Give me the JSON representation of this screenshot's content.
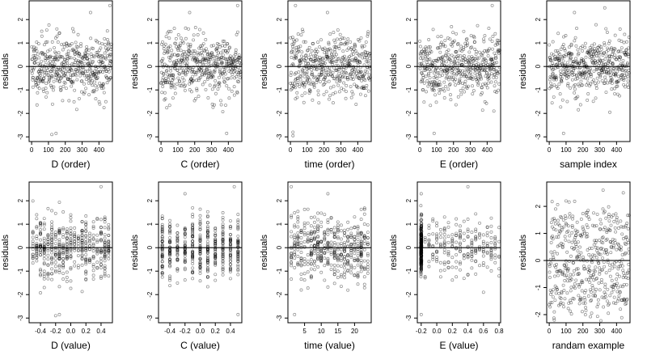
{
  "chart_data": [
    {
      "type": "scatter",
      "xlabel": "D (order)",
      "ylabel": "residuals",
      "xlim": [
        -15,
        480
      ],
      "ylim": [
        -3.2,
        2.8
      ],
      "xticks": [
        "0",
        "100",
        "200",
        "300",
        "400"
      ],
      "yticks": [
        "-3",
        "-2",
        "-1",
        "0",
        "1",
        "2"
      ],
      "x_mode": "order",
      "n": 480,
      "seed": 11,
      "reference_y": 0,
      "points": {
        "x": [
          120,
          145,
          350,
          465,
          150
        ],
        "y": [
          -2.9,
          -2.85,
          2.3,
          2.6,
          1.6
        ]
      }
    },
    {
      "type": "scatter",
      "xlabel": "C (order)",
      "ylabel": "residuals",
      "xlim": [
        -15,
        480
      ],
      "ylim": [
        -3.2,
        2.8
      ],
      "xticks": [
        "0",
        "100",
        "200",
        "300",
        "400"
      ],
      "yticks": [
        "-3",
        "-2",
        "-1",
        "0",
        "1",
        "2"
      ],
      "x_mode": "order",
      "n": 480,
      "seed": 23,
      "reference_y": 0,
      "points": {
        "x": [
          170,
          455,
          390,
          60
        ],
        "y": [
          2.3,
          2.6,
          -2.85,
          -0.9
        ]
      }
    },
    {
      "type": "scatter",
      "xlabel": "time (order)",
      "ylabel": "residuals",
      "xlim": [
        -15,
        480
      ],
      "ylim": [
        -3.2,
        2.8
      ],
      "xticks": [
        "0",
        "100",
        "200",
        "300",
        "400"
      ],
      "yticks": [
        "-3",
        "-2",
        "-1",
        "0",
        "1",
        "2"
      ],
      "x_mode": "order",
      "n": 480,
      "seed": 37,
      "reference_y": 0,
      "points": {
        "x": [
          15,
          30,
          220,
          15
        ],
        "y": [
          -2.8,
          2.6,
          2.3,
          -2.95
        ]
      }
    },
    {
      "type": "scatter",
      "xlabel": "E (order)",
      "ylabel": "residuals",
      "xlim": [
        -15,
        480
      ],
      "ylim": [
        -3.2,
        2.8
      ],
      "xticks": [
        "0",
        "100",
        "200",
        "300",
        "400"
      ],
      "yticks": [
        "-3",
        "-2",
        "-1",
        "0",
        "1",
        "2"
      ],
      "x_mode": "order",
      "n": 480,
      "seed": 41,
      "reference_y": 0,
      "points": {
        "x": [
          85,
          430,
          440
        ],
        "y": [
          -2.85,
          2.6,
          -1.9
        ]
      }
    },
    {
      "type": "scatter",
      "xlabel": "sample index",
      "ylabel": "residuals",
      "xlim": [
        -15,
        480
      ],
      "ylim": [
        -3.2,
        2.8
      ],
      "xticks": [
        "0",
        "100",
        "200",
        "300",
        "400"
      ],
      "yticks": [
        "-3",
        "-2",
        "-1",
        "0",
        "1",
        "2"
      ],
      "x_mode": "order",
      "n": 480,
      "seed": 53,
      "reference_y": 0,
      "points": {
        "x": [
          85,
          330,
          150,
          360
        ],
        "y": [
          -2.85,
          2.5,
          2.3,
          -1.95
        ]
      }
    },
    {
      "type": "scatter",
      "xlabel": "D (value)",
      "ylabel": "residuals",
      "xlim": [
        -0.55,
        0.55
      ],
      "ylim": [
        -3.2,
        2.8
      ],
      "xticks": [
        "-0.4",
        "-0.2",
        "0.0",
        "0.2",
        "0.4"
      ],
      "xtick_vals": [
        -0.4,
        -0.2,
        0.0,
        0.2,
        0.4
      ],
      "yticks": [
        "-3",
        "-2",
        "-1",
        "0",
        "1",
        "2"
      ],
      "x_mode": "discrete",
      "x_levels": [
        -0.5,
        -0.45,
        -0.4,
        -0.35,
        -0.3,
        -0.25,
        -0.2,
        -0.15,
        -0.1,
        -0.05,
        0,
        0.05,
        0.1,
        0.15,
        0.2,
        0.25,
        0.3,
        0.35,
        0.4,
        0.45,
        0.5
      ],
      "n": 480,
      "seed": 61,
      "reference_y": 0,
      "points": {
        "x": [
          -0.2,
          -0.15,
          0.4,
          0.45
        ],
        "y": [
          -2.9,
          -2.85,
          2.6,
          1.3
        ]
      }
    },
    {
      "type": "scatter",
      "xlabel": "C (value)",
      "ylabel": "residuals",
      "xlim": [
        -0.55,
        0.55
      ],
      "ylim": [
        -3.2,
        2.8
      ],
      "xticks": [
        "-0.4",
        "-0.2",
        "0.0",
        "0.2",
        "0.4"
      ],
      "xtick_vals": [
        -0.4,
        -0.2,
        0.0,
        0.2,
        0.4
      ],
      "yticks": [
        "-3",
        "-2",
        "-1",
        "0",
        "1",
        "2"
      ],
      "x_mode": "discrete",
      "x_levels": [
        -0.5,
        -0.4,
        -0.3,
        -0.2,
        -0.1,
        0,
        0.1,
        0.2,
        0.3,
        0.4,
        0.5
      ],
      "n": 480,
      "seed": 71,
      "reference_y": 0,
      "points": {
        "x": [
          -0.2,
          0.45,
          0.5
        ],
        "y": [
          2.3,
          2.6,
          -2.85
        ]
      }
    },
    {
      "type": "scatter",
      "xlabel": "time (value)",
      "ylabel": "residuals",
      "xlim": [
        0,
        25
      ],
      "ylim": [
        -3.2,
        2.8
      ],
      "xticks": [
        "5",
        "10",
        "15",
        "20"
      ],
      "xtick_vals": [
        5,
        10,
        15,
        20
      ],
      "yticks": [
        "-3",
        "-2",
        "-1",
        "0",
        "1",
        "2"
      ],
      "x_mode": "discrete",
      "x_levels": [
        1,
        2,
        3,
        4,
        5,
        6,
        7,
        8,
        9,
        10,
        11,
        12,
        13,
        14,
        15,
        16,
        17,
        18,
        19,
        20,
        21,
        22,
        23,
        24
      ],
      "n": 480,
      "seed": 83,
      "reference_y": 0,
      "points": {
        "x": [
          1,
          2,
          12
        ],
        "y": [
          2.6,
          -2.85,
          2.3
        ]
      }
    },
    {
      "type": "scatter",
      "xlabel": "E (value)",
      "ylabel": "residuals",
      "xlim": [
        -0.25,
        0.82
      ],
      "ylim": [
        -3.2,
        2.8
      ],
      "xticks": [
        "-0.2",
        "0.0",
        "0.2",
        "0.4",
        "0.6",
        "0.8"
      ],
      "xtick_vals": [
        -0.2,
        0.0,
        0.2,
        0.4,
        0.6,
        0.8
      ],
      "yticks": [
        "-3",
        "-2",
        "-1",
        "0",
        "1",
        "2"
      ],
      "x_mode": "Eval",
      "n": 480,
      "seed": 97,
      "reference_y": 0,
      "points": {
        "x": [
          -0.2,
          0.4,
          0.6,
          -0.2
        ],
        "y": [
          -2.85,
          2.6,
          -1.9,
          2.3
        ]
      }
    },
    {
      "type": "scatter",
      "xlabel": "randam example",
      "ylabel": "",
      "xlim": [
        -15,
        480
      ],
      "ylim": [
        -2.3,
        2.9
      ],
      "xticks": [
        "0",
        "100",
        "200",
        "300",
        "400"
      ],
      "yticks": [
        "-2",
        "-1",
        "0",
        "1",
        "2"
      ],
      "x_mode": "uniform",
      "n": 480,
      "seed": 107,
      "reference_y": 0,
      "points": {
        "x": [
          100,
          320,
          440,
          30
        ],
        "y": [
          2.2,
          2.6,
          2.5,
          -2.2
        ]
      }
    }
  ],
  "shared": {
    "ylabel": "residuals"
  }
}
